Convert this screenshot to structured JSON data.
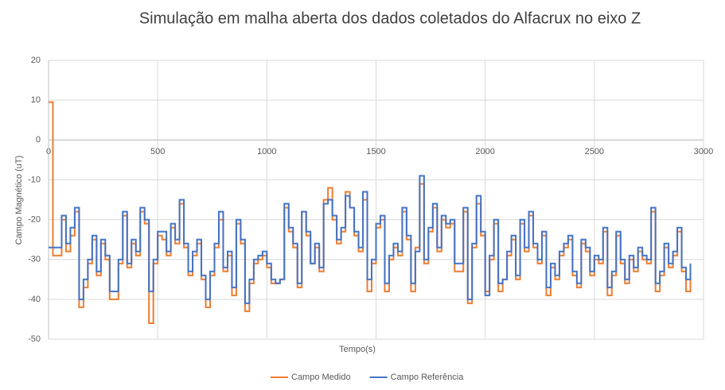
{
  "chart_data": {
    "type": "line",
    "step": true,
    "title": "Simulação em malha aberta dos dados coletados do Alfacrux no eixo Z",
    "x_label": "Tempo(s)",
    "y_label": "Campo Magnético (uT)",
    "xlim": [
      0,
      3000
    ],
    "xticks": [
      0,
      500,
      1000,
      1500,
      2000,
      2500,
      3000
    ],
    "ylim": [
      -50,
      20
    ],
    "yticks": [
      -50,
      -40,
      -30,
      -20,
      -10,
      0,
      10,
      20
    ],
    "grid": true,
    "legend": "bottom",
    "x": [
      0,
      20,
      40,
      60,
      80,
      100,
      120,
      140,
      160,
      180,
      200,
      220,
      240,
      260,
      280,
      300,
      320,
      340,
      360,
      380,
      400,
      420,
      440,
      460,
      480,
      500,
      520,
      540,
      560,
      580,
      600,
      620,
      640,
      660,
      680,
      700,
      720,
      740,
      760,
      780,
      800,
      820,
      840,
      860,
      880,
      900,
      920,
      940,
      960,
      980,
      1000,
      1020,
      1040,
      1060,
      1080,
      1100,
      1120,
      1140,
      1160,
      1180,
      1200,
      1220,
      1240,
      1260,
      1280,
      1300,
      1320,
      1340,
      1360,
      1380,
      1400,
      1420,
      1440,
      1460,
      1480,
      1500,
      1520,
      1540,
      1560,
      1580,
      1600,
      1620,
      1640,
      1660,
      1680,
      1700,
      1720,
      1740,
      1760,
      1780,
      1800,
      1820,
      1840,
      1860,
      1880,
      1900,
      1920,
      1940,
      1960,
      1980,
      2000,
      2020,
      2040,
      2060,
      2080,
      2100,
      2120,
      2140,
      2160,
      2180,
      2200,
      2220,
      2240,
      2260,
      2280,
      2300,
      2320,
      2340,
      2360,
      2380,
      2400,
      2420,
      2440,
      2460,
      2480,
      2500,
      2520,
      2540,
      2560,
      2580,
      2600,
      2620,
      2640,
      2660,
      2680,
      2700,
      2720,
      2740,
      2760,
      2780,
      2800,
      2820,
      2840,
      2860,
      2880,
      2900,
      2920,
      2940
    ],
    "series": [
      {
        "name": "Campo Medido",
        "color": "#ed7d31",
        "values": [
          9.5,
          -29,
          -29,
          -20,
          -28,
          -24,
          -18,
          -42,
          -37,
          -31,
          -25,
          -34,
          -26,
          -30,
          -40,
          -40,
          -31,
          -19,
          -32,
          -26,
          -29,
          -18,
          -21,
          -46,
          -31,
          -24,
          -25,
          -29,
          -22,
          -26,
          -16,
          -27,
          -34,
          -29,
          -26,
          -35,
          -42,
          -34,
          -27,
          -20,
          -33,
          -29,
          -39,
          -21,
          -26,
          -43,
          -36,
          -31,
          -30,
          -29,
          -32,
          -36,
          -36,
          -35,
          -17,
          -23,
          -27,
          -37,
          -18,
          -24,
          -31,
          -27,
          -33,
          -15,
          -12,
          -20,
          -26,
          -23,
          -13,
          -17,
          -24,
          -28,
          -15,
          -38,
          -31,
          -22,
          -20,
          -38,
          -30,
          -27,
          -29,
          -18,
          -25,
          -38,
          -27,
          -11,
          -31,
          -23,
          -17,
          -28,
          -20,
          -22,
          -21,
          -33,
          -33,
          -18,
          -41,
          -27,
          -16,
          -24,
          -38,
          -30,
          -21,
          -38,
          -35,
          -29,
          -25,
          -35,
          -21,
          -28,
          -19,
          -27,
          -31,
          -24,
          -39,
          -32,
          -35,
          -29,
          -27,
          -25,
          -34,
          -37,
          -26,
          -28,
          -34,
          -30,
          -31,
          -23,
          -39,
          -34,
          -24,
          -31,
          -36,
          -30,
          -33,
          -28,
          -30,
          -31,
          -18,
          -38,
          -34,
          -27,
          -32,
          -29,
          -23,
          -33,
          -38,
          -33.5
        ]
      },
      {
        "name": "Campo Referência",
        "color": "#4472c4",
        "values": [
          -27,
          -27,
          -27,
          -19,
          -26,
          -22,
          -17,
          -40,
          -35,
          -30,
          -24,
          -33,
          -25,
          -29,
          -38,
          -38,
          -30,
          -18,
          -31,
          -25,
          -28,
          -17,
          -20,
          -38,
          -30,
          -23,
          -23,
          -28,
          -21,
          -25,
          -15,
          -26,
          -33,
          -28,
          -25,
          -34,
          -40,
          -33,
          -26,
          -18,
          -32,
          -28,
          -37,
          -20,
          -25,
          -41,
          -35,
          -30,
          -29,
          -28,
          -31,
          -35,
          -36,
          -35,
          -16,
          -22,
          -26,
          -36,
          -18,
          -23,
          -31,
          -26,
          -32,
          -16,
          -15,
          -19,
          -25,
          -22,
          -14,
          -17,
          -23,
          -27,
          -13,
          -35,
          -30,
          -21,
          -19,
          -36,
          -29,
          -26,
          -28,
          -17,
          -24,
          -36,
          -28,
          -9,
          -30,
          -22,
          -16,
          -27,
          -19,
          -21,
          -20,
          -31,
          -31,
          -17,
          -40,
          -26,
          -14,
          -23,
          -39,
          -29,
          -20,
          -36,
          -35,
          -28,
          -24,
          -34,
          -20,
          -27,
          -18,
          -26,
          -30,
          -23,
          -37,
          -31,
          -34,
          -28,
          -26,
          -24,
          -33,
          -36,
          -25,
          -27,
          -33,
          -29,
          -30,
          -22,
          -37,
          -33,
          -23,
          -30,
          -35,
          -29,
          -32,
          -27,
          -29,
          -30,
          -17,
          -36,
          -33,
          -26,
          -31,
          -28,
          -22,
          -32,
          -35,
          -31
        ]
      }
    ]
  }
}
